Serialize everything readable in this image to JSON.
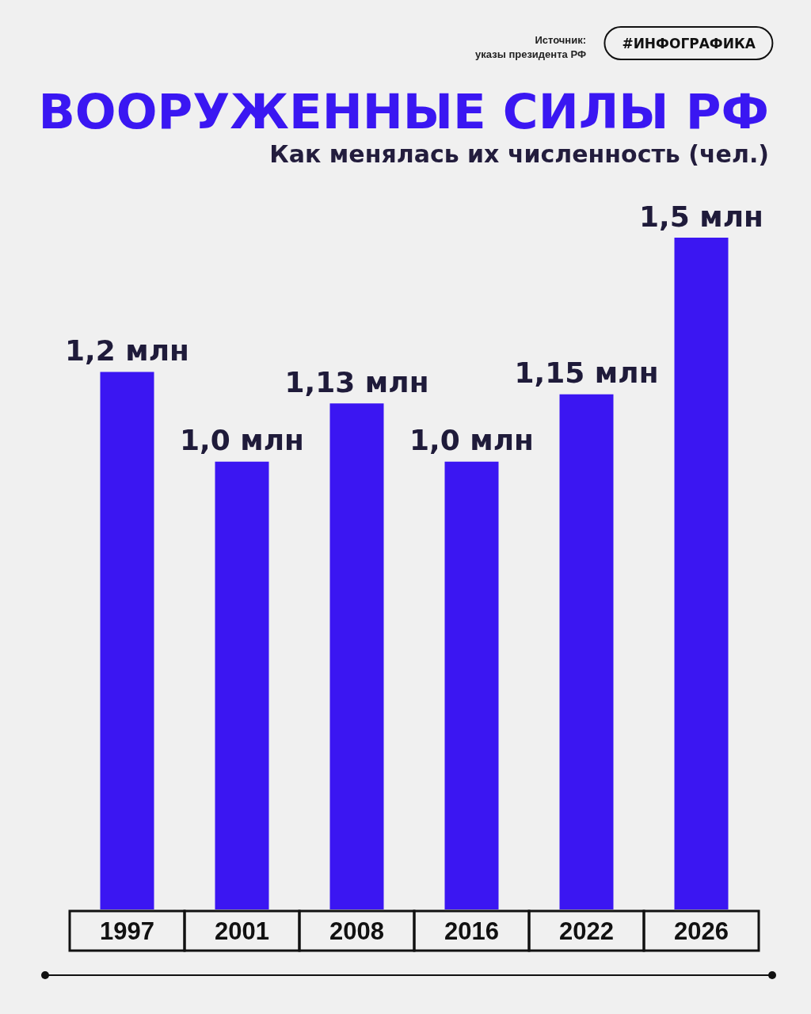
{
  "chart_data": {
    "type": "bar",
    "title": "ВООРУЖЕННЫЕ СИЛЫ РФ",
    "subtitle": "Как менялась их численность (чел.)",
    "annotations": [
      "Источник:\nуказы президента РФ",
      "#ИНФОГРАФИКА"
    ],
    "categories": [
      "1997",
      "2001",
      "2008",
      "2016",
      "2022",
      "2026"
    ],
    "values": [
      1.2,
      1.0,
      1.13,
      1.0,
      1.15,
      1.5
    ],
    "value_labels": [
      "1,2 млн",
      "1,0 млн",
      "1,13 млн",
      "1,0 млн",
      "1,15 млн",
      "1,5 млн"
    ],
    "color": "#3b16f2"
  }
}
